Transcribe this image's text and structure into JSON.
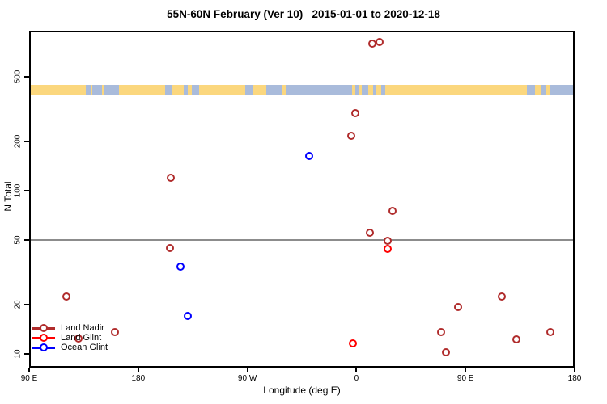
{
  "title": "55N-60N February (Ver 10)   2015-01-01 to 2020-12-18",
  "colors": {
    "land_nadir": "#B02C2C",
    "land_glint": "#FF0000",
    "ocean_glint": "#0000FF",
    "map_land": "#FBD77E",
    "map_ocean": "#A9BBDB",
    "reference_line": "#8C8C8C",
    "axis": "#000000"
  },
  "legend": {
    "items": [
      {
        "label": "Land Nadir",
        "color": "#B02C2C"
      },
      {
        "label": "Land Glint",
        "color": "#FF0000"
      },
      {
        "label": "Ocean Glint",
        "color": "#0000FF"
      }
    ]
  },
  "chart_data": {
    "type": "scatter",
    "title": "55N-60N February (Ver 10)   2015-01-01 to 2020-12-18",
    "xlabel": "Longitude (deg E)",
    "ylabel": "N Total",
    "x_axis": {
      "xlim_deg": [
        90,
        540
      ],
      "ticks_deg": [
        90,
        180,
        270,
        360,
        450,
        540
      ],
      "tick_labels": [
        "90 E",
        "180",
        "90 W",
        "0",
        "90 E",
        "180"
      ]
    },
    "y_axis": {
      "scale": "log",
      "ylim": [
        8.2,
        960
      ],
      "ticks": [
        10,
        20,
        50,
        100,
        200,
        500
      ],
      "tick_labels": [
        "10",
        "20",
        "50",
        "100",
        "200",
        "500"
      ]
    },
    "reference_line_y": 50,
    "grid": false,
    "legend_position": "bottom-left",
    "series": [
      {
        "name": "Land Nadir",
        "color": "#B02C2C",
        "points": [
          {
            "x": 121,
            "y": 22.5
          },
          {
            "x": 131,
            "y": 12.4
          },
          {
            "x": 161,
            "y": 13.5
          },
          {
            "x": 206,
            "y": 44.5
          },
          {
            "x": 207,
            "y": 120
          },
          {
            "x": 356,
            "y": 218
          },
          {
            "x": 359,
            "y": 300
          },
          {
            "x": 371,
            "y": 55
          },
          {
            "x": 373,
            "y": 800
          },
          {
            "x": 379,
            "y": 820
          },
          {
            "x": 386,
            "y": 49.5
          },
          {
            "x": 390,
            "y": 75
          },
          {
            "x": 430,
            "y": 13.5
          },
          {
            "x": 434,
            "y": 10.2
          },
          {
            "x": 444,
            "y": 19.3
          },
          {
            "x": 480,
            "y": 22.5
          },
          {
            "x": 492,
            "y": 12.2
          },
          {
            "x": 520,
            "y": 13.5
          }
        ]
      },
      {
        "name": "Land Glint",
        "color": "#FF0000",
        "points": [
          {
            "x": 357,
            "y": 11.6
          },
          {
            "x": 386,
            "y": 44
          }
        ]
      },
      {
        "name": "Ocean Glint",
        "color": "#0000FF",
        "points": [
          {
            "x": 215,
            "y": 34
          },
          {
            "x": 221,
            "y": 17
          },
          {
            "x": 321,
            "y": 163
          }
        ]
      }
    ],
    "map_band": {
      "description": "world land/ocean strip for 55N-60N drawn across plot",
      "land_color": "#FBD77E",
      "ocean_color": "#A9BBDB",
      "land_segments_frac": [
        [
          0.0,
          0.101
        ],
        [
          0.11,
          0.114
        ],
        [
          0.131,
          0.135
        ],
        [
          0.163,
          0.248
        ],
        [
          0.261,
          0.282
        ],
        [
          0.289,
          0.297
        ],
        [
          0.31,
          0.396
        ],
        [
          0.411,
          0.435
        ],
        [
          0.463,
          0.47
        ],
        [
          0.593,
          0.599
        ],
        [
          0.605,
          0.611
        ],
        [
          0.623,
          0.631
        ],
        [
          0.637,
          0.647
        ],
        [
          0.653,
          0.915
        ],
        [
          0.93,
          0.942
        ],
        [
          0.95,
          0.958
        ]
      ]
    }
  }
}
